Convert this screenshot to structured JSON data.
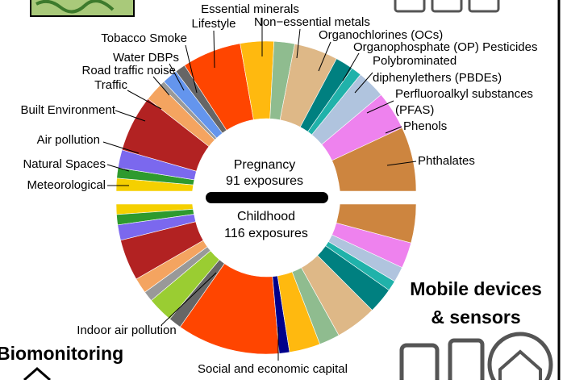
{
  "pregnancy": {
    "title": "Pregnancy",
    "count": "91 exposures"
  },
  "childhood": {
    "title": "Childhood",
    "count": "116 exposures"
  },
  "labels": {
    "essential_minerals": "Essential minerals",
    "lifestyle": "Lifestyle",
    "non_essential_metals": "Non−essential metals",
    "tobacco_smoke": "Tobacco Smoke",
    "organochlorines": "Organochlorines (OCs)",
    "water_dbps": "Water DBPs",
    "op_pesticides": "Organophosphate (OP) Pesticides",
    "road_traffic_noise": "Road traffic noise",
    "pbde": [
      "Polybrominated",
      "diphenylethers (PBDEs)"
    ],
    "traffic": "Traffic",
    "pfas": [
      "Perfluoroalkyl substances",
      "(PFAS)"
    ],
    "built_environment": "Built Environment",
    "phenols": "Phenols",
    "air_pollution": "Air pollution",
    "phthalates": "Phthalates",
    "natural_spaces": "Natural Spaces",
    "meteorological": "Meteorological",
    "indoor_air_pollution": "Indoor air pollution",
    "social_economic_capital": "Social and economic capital"
  },
  "mobile_devices": [
    "Mobile devices",
    "& sensors"
  ],
  "biomonitoring": "Biomonitoring"
}
